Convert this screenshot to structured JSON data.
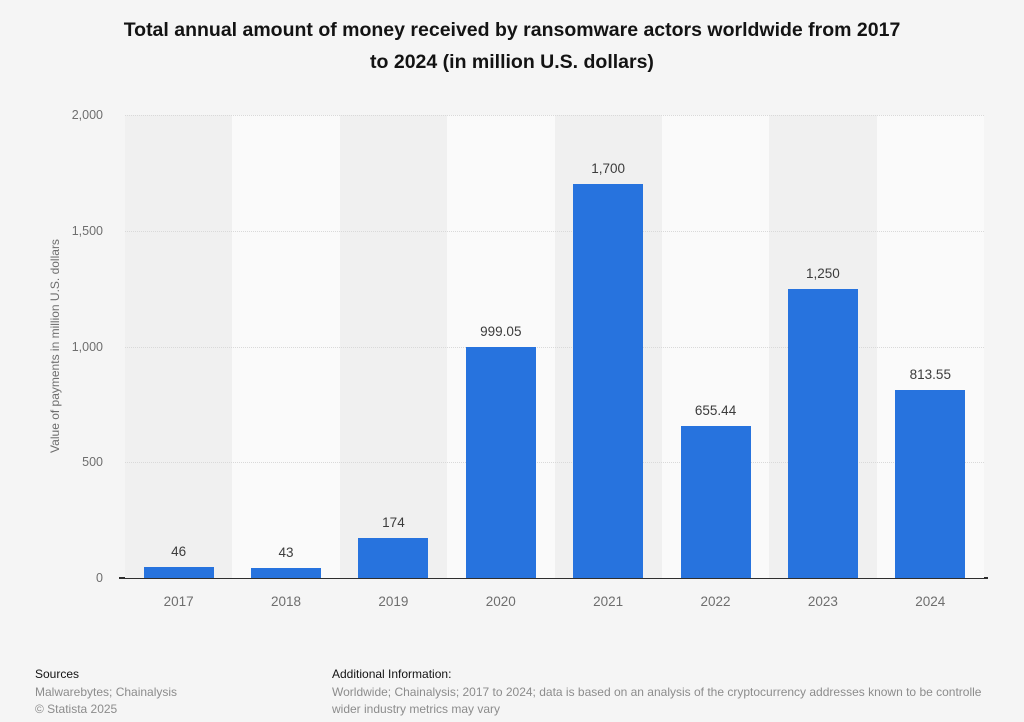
{
  "page": {
    "background": "#f5f5f5"
  },
  "title": {
    "line1": "Total annual amount of money received by ransomware actors worldwide from 2017",
    "line2": "to 2024 (in million U.S. dollars)"
  },
  "chart_data": {
    "type": "bar",
    "title": "Total annual amount of money received by ransomware actors worldwide from 2017 to 2024 (in million U.S. dollars)",
    "categories": [
      "2017",
      "2018",
      "2019",
      "2020",
      "2021",
      "2022",
      "2023",
      "2024"
    ],
    "values": [
      46,
      43,
      174,
      999.05,
      1700,
      655.44,
      1250,
      813.55
    ],
    "value_labels": [
      "46",
      "43",
      "174",
      "999.05",
      "1,700",
      "655.44",
      "1,250",
      "813.55"
    ],
    "xlabel": "",
    "ylabel": "Value of payments in million U.S. dollars",
    "ylim": [
      0,
      2000
    ],
    "yticks": [
      {
        "value": 2000,
        "label": "2,000"
      },
      {
        "value": 1500,
        "label": "1,500"
      },
      {
        "value": 1000,
        "label": "1,000"
      },
      {
        "value": 500,
        "label": "500"
      },
      {
        "value": 0,
        "label": "0"
      }
    ],
    "grid": "horizontal-dotted",
    "legend": "none",
    "bar_color": "#2773de",
    "band_colors": [
      "#f0f0f0",
      "#fafafa"
    ]
  },
  "footer": {
    "sources_heading": "Sources",
    "sources_line": "Malwarebytes; Chainalysis",
    "copyright": "© Statista 2025",
    "additional_heading": "Additional Information:",
    "additional_line1": "Worldwide; Chainalysis; 2017 to 2024; data is based on an analysis of the cryptocurrency addresses known to be controlle",
    "additional_line2": "wider industry metrics may vary"
  }
}
